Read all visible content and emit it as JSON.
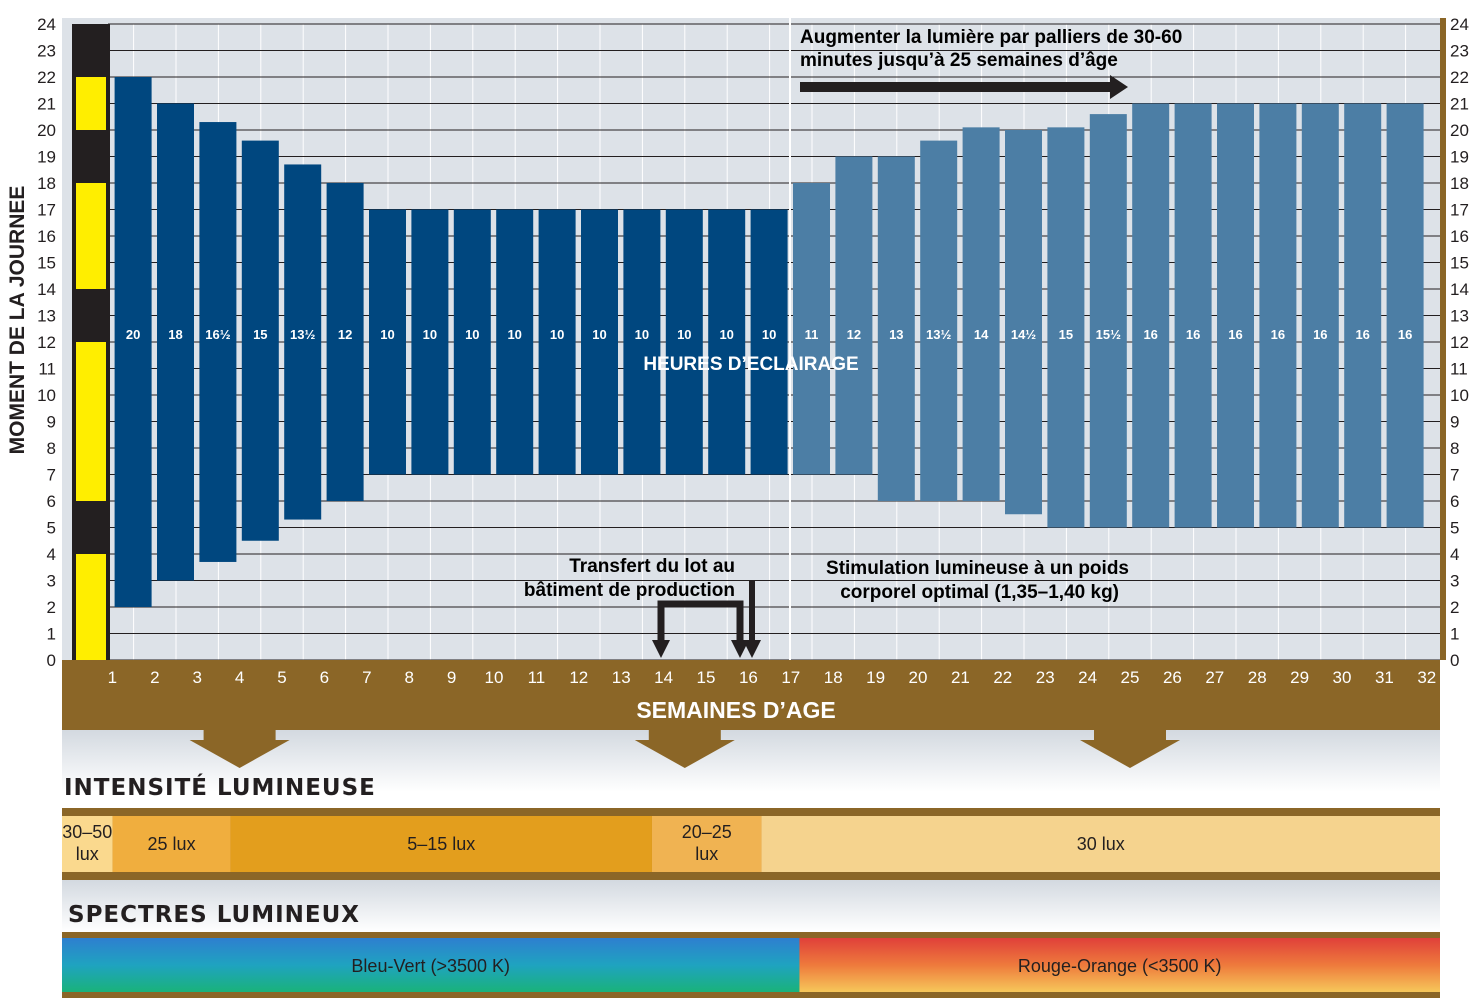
{
  "chart_data": {
    "type": "bar",
    "subtype": "floating-range",
    "title": "",
    "ylabel": "MOMENT DE LA JOURNEE",
    "xlabel": "SEMAINES D’AGE",
    "center_label": "HEURES D’ECLAIRAGE",
    "ylim": [
      0,
      24
    ],
    "y_ticks": [
      "0",
      "1",
      "2",
      "3",
      "4",
      "5",
      "6",
      "7",
      "8",
      "9",
      "10",
      "11",
      "12",
      "13",
      "14",
      "15",
      "16",
      "17",
      "18",
      "19",
      "20",
      "21",
      "22",
      "23",
      "24"
    ],
    "x_ticks": [
      "1",
      "2",
      "3",
      "4",
      "5",
      "6",
      "7",
      "8",
      "9",
      "10",
      "11",
      "12",
      "13",
      "14",
      "15",
      "16",
      "17",
      "18",
      "19",
      "20",
      "21",
      "22",
      "23",
      "24",
      "25",
      "26",
      "27",
      "28",
      "29",
      "30",
      "31",
      "32"
    ],
    "grid": true,
    "day_night_scale": [
      {
        "from": 0,
        "to": 4,
        "state": "light"
      },
      {
        "from": 4,
        "to": 6,
        "state": "dark"
      },
      {
        "from": 6,
        "to": 12,
        "state": "light"
      },
      {
        "from": 12,
        "to": 14,
        "state": "dark"
      },
      {
        "from": 14,
        "to": 18,
        "state": "light"
      },
      {
        "from": 18,
        "to": 20,
        "state": "dark"
      },
      {
        "from": 20,
        "to": 22,
        "state": "light"
      },
      {
        "from": 22,
        "to": 24,
        "state": "dark"
      }
    ],
    "series": [
      {
        "phase": "rearing",
        "color": "#00477f",
        "bars": [
          {
            "week": 1.5,
            "start": 2,
            "end": 22,
            "label": "20"
          },
          {
            "week": 2.5,
            "start": 3,
            "end": 21,
            "label": "18"
          },
          {
            "week": 3.5,
            "start": 3.7,
            "end": 20.3,
            "label": "16½"
          },
          {
            "week": 4.5,
            "start": 4.5,
            "end": 19.6,
            "label": "15"
          },
          {
            "week": 5.5,
            "start": 5.3,
            "end": 18.7,
            "label": "13½"
          },
          {
            "week": 6.5,
            "start": 6,
            "end": 18,
            "label": "12"
          },
          {
            "week": 7.5,
            "start": 7,
            "end": 17,
            "label": "10"
          },
          {
            "week": 8.5,
            "start": 7,
            "end": 17,
            "label": "10"
          },
          {
            "week": 9.5,
            "start": 7,
            "end": 17,
            "label": "10"
          },
          {
            "week": 10.5,
            "start": 7,
            "end": 17,
            "label": "10"
          },
          {
            "week": 11.5,
            "start": 7,
            "end": 17,
            "label": "10"
          },
          {
            "week": 12.5,
            "start": 7,
            "end": 17,
            "label": "10"
          },
          {
            "week": 13.5,
            "start": 7,
            "end": 17,
            "label": "10"
          },
          {
            "week": 14.5,
            "start": 7,
            "end": 17,
            "label": "10"
          },
          {
            "week": 15.5,
            "start": 7,
            "end": 17,
            "label": "10"
          },
          {
            "week": 16.5,
            "start": 7,
            "end": 17,
            "label": "10"
          }
        ]
      },
      {
        "phase": "production",
        "color": "#4c7ea5",
        "bars": [
          {
            "week": 17.5,
            "start": 7,
            "end": 18,
            "label": "11"
          },
          {
            "week": 18.5,
            "start": 7,
            "end": 19,
            "label": "12"
          },
          {
            "week": 19.5,
            "start": 6,
            "end": 19,
            "label": "13"
          },
          {
            "week": 20.5,
            "start": 6,
            "end": 19.6,
            "label": "13½"
          },
          {
            "week": 21.5,
            "start": 6,
            "end": 20.1,
            "label": "14"
          },
          {
            "week": 22.5,
            "start": 5.5,
            "end": 20,
            "label": "14½"
          },
          {
            "week": 23.5,
            "start": 5,
            "end": 20.1,
            "label": "15"
          },
          {
            "week": 24.5,
            "start": 5,
            "end": 20.6,
            "label": "15½"
          },
          {
            "week": 25.5,
            "start": 5,
            "end": 21,
            "label": "16"
          },
          {
            "week": 26.5,
            "start": 5,
            "end": 21,
            "label": "16"
          },
          {
            "week": 27.5,
            "start": 5,
            "end": 21,
            "label": "16"
          },
          {
            "week": 28.5,
            "start": 5,
            "end": 21,
            "label": "16"
          },
          {
            "week": 29.5,
            "start": 5,
            "end": 21,
            "label": "16"
          },
          {
            "week": 30.5,
            "start": 5,
            "end": 21,
            "label": "16"
          },
          {
            "week": 31.5,
            "start": 5,
            "end": 21,
            "label": "16"
          }
        ]
      }
    ],
    "annotations": [
      {
        "id": "increase",
        "lines": [
          "Augmenter la lumière par palliers de 30-60",
          "minutes jusqu’à 25 semaines d’âge"
        ]
      },
      {
        "id": "transfer",
        "lines": [
          "Transfert du lot au",
          "bâtiment de production"
        ]
      },
      {
        "id": "stimulation",
        "lines": [
          "Stimulation lumineuse à un poids",
          "corporel optimal (1,35–1,40 kg)"
        ]
      }
    ],
    "down_arrows_at_weeks": [
      4,
      14.5,
      25
    ]
  },
  "intensity": {
    "title": "INTENSITÉ LUMINEUSE",
    "segments": [
      {
        "from": 0,
        "to": 1.2,
        "lines": [
          "30–50",
          "lux"
        ],
        "color": "#fad98e"
      },
      {
        "from": 1.2,
        "to": 4,
        "lines": [
          "25 lux"
        ],
        "color": "#f0ae3e"
      },
      {
        "from": 4,
        "to": 14,
        "lines": [
          "5–15 lux"
        ],
        "color": "#e39e1d"
      },
      {
        "from": 14,
        "to": 16.6,
        "lines": [
          "20–25",
          "lux"
        ],
        "color": "#f0b352"
      },
      {
        "from": 16.6,
        "to": 32.7,
        "lines": [
          "30 lux"
        ],
        "color": "#f5d38e"
      }
    ]
  },
  "spectrum": {
    "title": "SPECTRES LUMINEUX",
    "segments": [
      {
        "from": 0,
        "to": 17.5,
        "label": "Bleu-Vert (>3500 K)"
      },
      {
        "from": 17.5,
        "to": 32.7,
        "label": "Rouge-Orange (<3500 K)"
      }
    ]
  },
  "colors": {
    "brown": "#8b6627",
    "yellow": "#ffee00",
    "grid_bg": "#dde2e8"
  }
}
